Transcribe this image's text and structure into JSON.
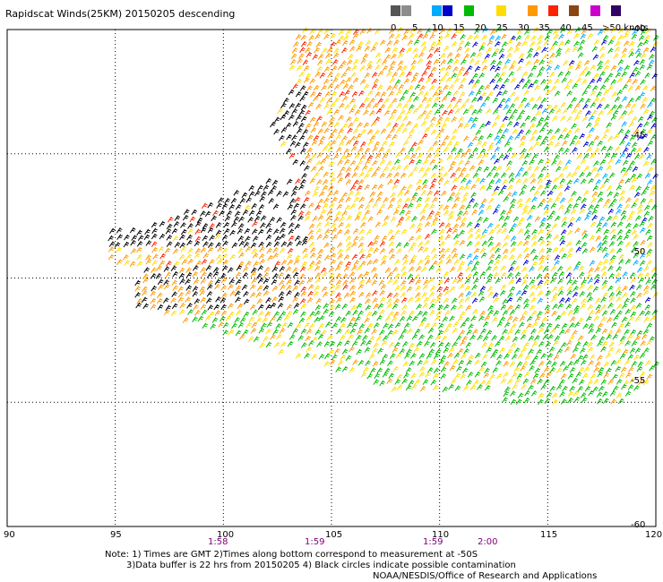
{
  "title": "Rapidscat Winds(25KM) 20150205 descending",
  "legend": {
    "labels": [
      "0",
      "5",
      "10",
      "15",
      "20",
      "25",
      "30",
      "35",
      "40",
      "45",
      ">50 knots"
    ],
    "colors": [
      "#555555",
      "#8c8c8c",
      "#00aaff",
      "#0000cc",
      "#00bb00",
      "#ffdd00",
      "#ff9900",
      "#ff2200",
      "#8b4513",
      "#cc00cc",
      "#330066"
    ]
  },
  "map": {
    "lon_range": [
      90,
      120
    ],
    "lat_range": [
      -60,
      -40
    ],
    "lat_labels": [
      "-40",
      "-45",
      "-50",
      "-55",
      "-60"
    ],
    "lon_labels": [
      "90",
      "95",
      "100",
      "105",
      "110",
      "115",
      "120"
    ],
    "time_labels": [
      "1:58",
      "1:59",
      "1:59",
      "2:00"
    ]
  },
  "notes": {
    "line1": "Note: 1) Times are GMT 2)Times along bottom correspond to measurement at -50S",
    "line2": "3)Data buffer is 22 hrs from 20150205 4) Black circles indicate possible contamination",
    "credit": "NOAA/NESDIS/Office of Research and Applications"
  }
}
